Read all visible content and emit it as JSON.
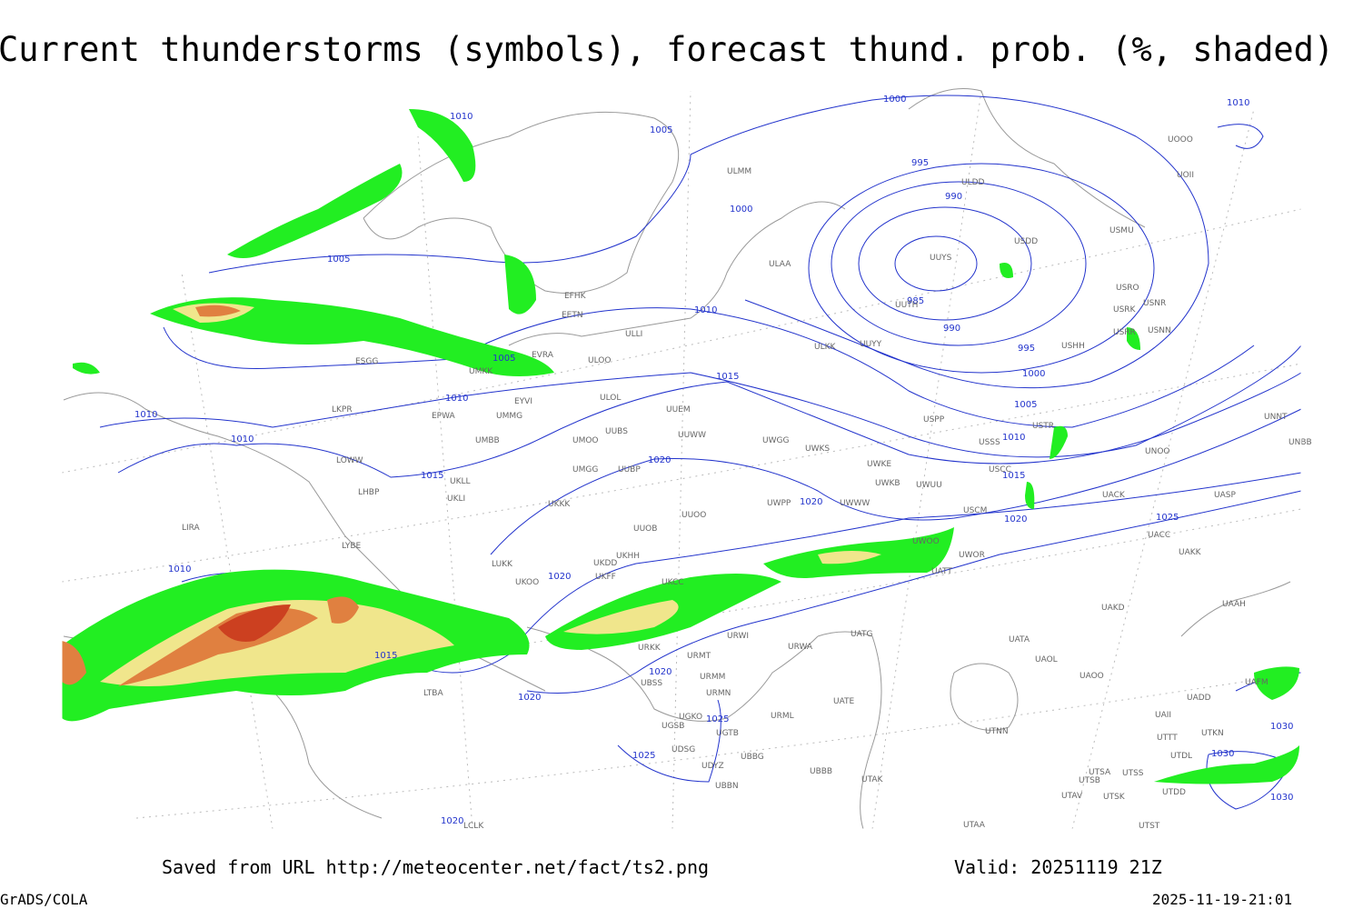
{
  "header": {
    "title": "Current thunderstorms (symbols), forecast thund. prob. (%, shaded)"
  },
  "map": {
    "isobar_labels": [
      1010,
      1005,
      1000,
      995,
      990,
      985,
      990,
      995,
      1000,
      1005,
      1010,
      1015,
      1020,
      1025,
      1010,
      1000,
      1005,
      1010,
      1005,
      1015,
      1010,
      1010,
      1010,
      1015,
      1020,
      1020,
      1020,
      1010,
      1015,
      1020,
      1020,
      1025,
      1025,
      1020,
      1030,
      1030,
      1030
    ],
    "stations": [
      "UUYS",
      "ULDD",
      "USDD",
      "USMU",
      "UOII",
      "UOOO",
      "USRO",
      "USRK",
      "USNR",
      "USRR",
      "USNN",
      "USHH",
      "UUYY",
      "ULKK",
      "UUTH",
      "ULAA",
      "ULMM",
      "EFHK",
      "EETN",
      "ULLI",
      "EVRA",
      "ULOO",
      "UMKK",
      "ESGG",
      "EYVI",
      "ULOL",
      "UUEM",
      "EPWA",
      "UMMG",
      "LKPR",
      "UMBB",
      "UUBS",
      "UMOO",
      "UUWW",
      "UWGG",
      "UWKS",
      "LOWW",
      "UKLL",
      "UMGG",
      "UUBP",
      "UWKE",
      "UWKB",
      "UWUU",
      "LHBP",
      "UKLI",
      "UWPP",
      "UWWW",
      "UKKK",
      "UUOO",
      "USCM",
      "USSS",
      "USTR",
      "USPP",
      "USCC",
      "UACC",
      "UACK",
      "UASP",
      "UNOO",
      "UNNT",
      "UNBB",
      "UUOB",
      "LIRA",
      "LYBE",
      "LUKK",
      "UKOO",
      "UKDD",
      "UKHH",
      "UKFF",
      "UWOO",
      "UWOR",
      "UATT",
      "UKCC",
      "UAKK",
      "UAKD",
      "UAAH",
      "UATG",
      "UATA",
      "UAOL",
      "UAOO",
      "UAFM",
      "URWI",
      "URWA",
      "URKK",
      "URMT",
      "UBSS",
      "URMM",
      "URMN",
      "UATE",
      "URML",
      "UGKO",
      "UGSB",
      "UGTB",
      "UBBG",
      "UDSG",
      "UDYZ",
      "UBBN",
      "UBBB",
      "UTAK",
      "UTAA",
      "UTNN",
      "UTSA",
      "UTSB",
      "UTSS",
      "UTAV",
      "UTSK",
      "UTST",
      "UTDL",
      "UTTT",
      "UTKN",
      "UTDD",
      "LTBA",
      "LCLK",
      "UADD",
      "UAII"
    ]
  },
  "footer": {
    "source": "Saved from URL http://meteocenter.net/fact/ts2.png",
    "valid": "Valid: 20251119 21Z",
    "software": "GrADS/COLA",
    "timestamp": "2025-11-19-21:01"
  }
}
